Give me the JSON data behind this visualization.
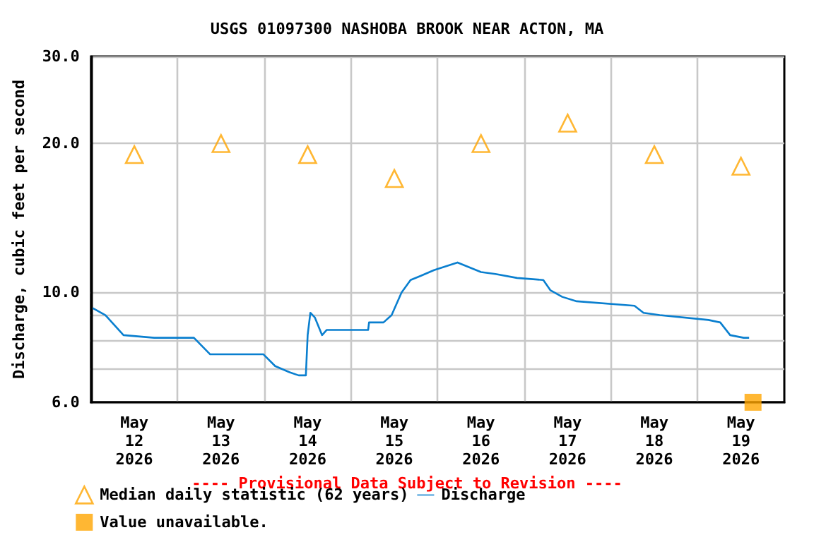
{
  "chart_data": {
    "type": "line",
    "title": "USGS 01097300 NASHOBA BROOK NEAR ACTON, MA",
    "ylabel": "Discharge, cubic feet per second",
    "annotations": [
      "---- Provisional Data Subject to Revision ----"
    ],
    "xlim": [
      "2026-05-12",
      "2026-05-20"
    ],
    "xticks": [
      {
        "value": "2026-05-12T12:00",
        "label": "May 12 2026"
      },
      {
        "value": "2026-05-13T12:00",
        "label": "May 13 2026"
      },
      {
        "value": "2026-05-14T12:00",
        "label": "May 14 2026"
      },
      {
        "value": "2026-05-15T12:00",
        "label": "May 15 2026"
      },
      {
        "value": "2026-05-16T12:00",
        "label": "May 16 2026"
      },
      {
        "value": "2026-05-17T12:00",
        "label": "May 17 2026"
      },
      {
        "value": "2026-05-18T12:00",
        "label": "May 18 2026"
      },
      {
        "value": "2026-05-19T12:00",
        "label": "May 19 2026"
      },
      {
        "value": "2026-05-13",
        "label": null
      },
      {
        "value": "2026-05-14",
        "label": null
      },
      {
        "value": "2026-05-15",
        "label": null
      },
      {
        "value": "2026-05-16",
        "label": null
      },
      {
        "value": "2026-05-17",
        "label": null
      },
      {
        "value": "2026-05-18",
        "label": null
      },
      {
        "value": "2026-05-19",
        "label": null
      }
    ],
    "ylim": [
      6,
      30
    ],
    "log": "y",
    "yticks": [
      {
        "value": 6,
        "label": "6.0"
      },
      {
        "value": 7,
        "label": null
      },
      {
        "value": 8,
        "label": null
      },
      {
        "value": 9,
        "label": null
      },
      {
        "value": 10,
        "label": "10.0"
      },
      {
        "value": 20,
        "label": "20.0"
      },
      {
        "value": 30,
        "label": "30.0"
      }
    ],
    "grid": true,
    "legend": "bottom left",
    "series": [
      {
        "name": "Median daily statistic (62 years)",
        "type": "scatter",
        "marker": "triangle",
        "color": "#ffa500",
        "x": [
          "2026-05-12T12:00",
          "2026-05-13T12:00",
          "2026-05-14T12:00",
          "2026-05-15T12:00",
          "2026-05-16T12:00",
          "2026-05-17T12:00",
          "2026-05-18T12:00",
          "2026-05-19T12:00"
        ],
        "values": [
          19,
          20,
          19,
          17,
          20,
          22,
          19,
          18
        ]
      },
      {
        "name": "Discharge",
        "marker": "none",
        "line_style": "solid",
        "color": "#0a7fcf",
        "x": [
          "2026-05-12T00:30",
          "2026-05-12T04:00",
          "2026-05-12T09:00",
          "2026-05-12T17:30",
          "2026-05-13T04:30",
          "2026-05-13T09:00",
          "2026-05-13T23:45",
          "2026-05-14T03:00",
          "2026-05-14T07:00",
          "2026-05-14T09:30",
          "2026-05-14T11:30",
          "2026-05-14T12:00",
          "2026-05-14T12:45",
          "2026-05-14T14:00",
          "2026-05-14T16:00",
          "2026-05-14T17:15",
          "2026-05-15T04:45",
          "2026-05-15T05:00",
          "2026-05-15T09:00",
          "2026-05-15T11:15",
          "2026-05-15T14:00",
          "2026-05-15T16:30",
          "2026-05-15T19:15",
          "2026-05-15T23:00",
          "2026-05-16T05:30",
          "2026-05-16T12:00",
          "2026-05-16T16:00",
          "2026-05-16T22:00",
          "2026-05-17T05:15",
          "2026-05-17T07:15",
          "2026-05-17T10:30",
          "2026-05-17T14:30",
          "2026-05-18T06:30",
          "2026-05-18T09:00",
          "2026-05-18T13:30",
          "2026-05-19T03:00",
          "2026-05-19T06:15",
          "2026-05-19T09:00",
          "2026-05-19T12:45",
          "2026-05-19T14:15"
        ],
        "values": [
          9.3,
          9.0,
          8.2,
          8.1,
          8.1,
          7.5,
          7.5,
          7.1,
          6.9,
          6.8,
          6.8,
          8.2,
          9.1,
          8.9,
          8.2,
          8.4,
          8.4,
          8.7,
          8.7,
          9.0,
          10.0,
          10.6,
          10.8,
          11.1,
          11.5,
          11.0,
          10.9,
          10.7,
          10.6,
          10.1,
          9.8,
          9.6,
          9.4,
          9.1,
          9.0,
          8.8,
          8.7,
          8.2,
          8.1,
          8.1
        ]
      },
      {
        "name": "Value unavailable.",
        "type": "scatter",
        "marker": "square",
        "color": "#ffa500",
        "x": [
          "2026-05-19T15:20"
        ],
        "values": [
          6
        ]
      }
    ]
  }
}
